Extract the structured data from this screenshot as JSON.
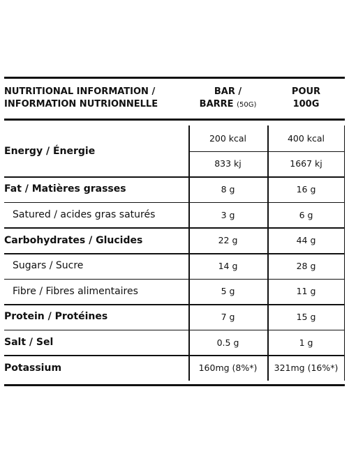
{
  "header": {
    "label": [
      "NUTRITIONAL INFORMATION /",
      "INFORMATION NUTRIONNELLE"
    ],
    "bar": [
      "BAR /",
      "BARRE",
      "(50G)"
    ],
    "per100": [
      "POUR",
      "100G"
    ]
  },
  "rows": [
    {
      "label": "Energy / Énergie",
      "bar": [
        "200 kcal",
        "833 kj"
      ],
      "per100": [
        "400 kcal",
        "1667 kj"
      ]
    },
    {
      "label": "Fat / Matières grasses",
      "bar": [
        "8 g"
      ],
      "per100": [
        "16 g"
      ]
    },
    {
      "label": "Satured / acides gras saturés",
      "bar": [
        "3 g"
      ],
      "per100": [
        "6 g"
      ]
    },
    {
      "label": "Carbohydrates / Glucides",
      "bar": [
        "22 g"
      ],
      "per100": [
        "44 g"
      ]
    },
    {
      "label": "Sugars / Sucre",
      "bar": [
        "14 g"
      ],
      "per100": [
        "28 g"
      ]
    },
    {
      "label": "Fibre / Fibres alimentaires",
      "bar": [
        "5 g"
      ],
      "per100": [
        "11 g"
      ]
    },
    {
      "label": "Protein / Protéines",
      "bar": [
        "7 g"
      ],
      "per100": [
        "15 g"
      ]
    },
    {
      "label": "Salt / Sel",
      "bar": [
        "0.5 g"
      ],
      "per100": [
        "1 g"
      ]
    },
    {
      "label": "Potassium",
      "bar": [
        "160mg (8%*)"
      ],
      "per100": [
        "321mg (16%*)"
      ]
    }
  ]
}
